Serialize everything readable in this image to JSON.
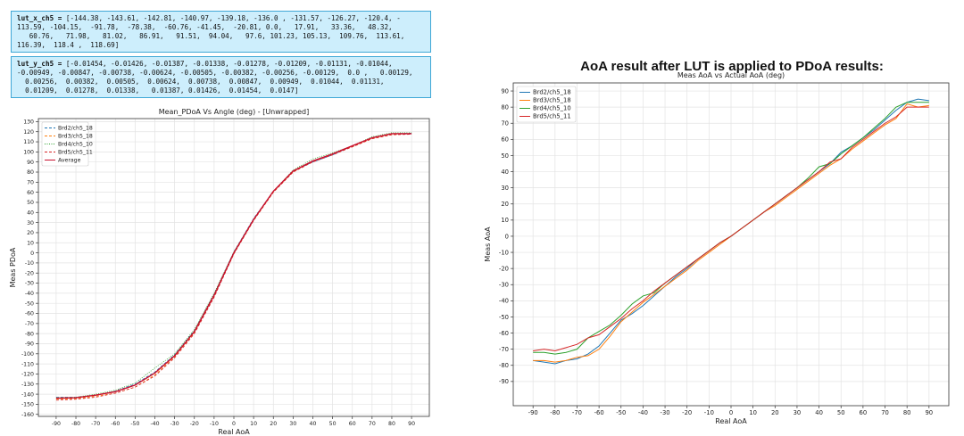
{
  "code_blocks": [
    {
      "label": "lut_x_ch5 =",
      "lines": [
        "[-144.38, -143.61, -142.81, -140.97, -139.18, -136.0 , -131.57, -126.27, -120.4, -",
        "113.59, -104.15,  -91.78,  -78.38,  -60.76, -41.45,  -20.81, 0.0,   17.91,   33.36,   48.32,",
        "   60.76,   71.98,   81.02,   86.91,   91.51,  94.04,   97.6, 101.23, 105.13,  109.76,  113.61,",
        "116.39,  118.4 ,  118.69]"
      ]
    },
    {
      "label": "lut_y_ch5 =",
      "lines": [
        "[-0.01454, -0.01426, -0.01387, -0.01338, -0.01278, -0.01209, -0.01131, -0.01044,",
        "-0.00949, -0.00847, -0.00738, -0.00624, -0.00505, -0.00382, -0.00256, -0.00129,  0.0 ,   0.00129,",
        "  0.00256,  0.00382,  0.00505,  0.00624,  0.00738,  0.00847,  0.00949,  0.01044,  0.01131,",
        "  0.01209,  0.01278,  0.01338,   0.01387, 0.01426,  0.01454,  0.0147]"
      ]
    }
  ],
  "heading": "AoA result after LUT is applied to PDoA results:",
  "chart_data": [
    {
      "type": "line",
      "title": "Mean_PDoA Vs Angle (deg)  - [Unwrapped]",
      "x_label": "Real AoA",
      "y_label": "Meas PDoA",
      "x": [
        -90,
        -80,
        -70,
        -60,
        -50,
        -40,
        -30,
        -20,
        -10,
        0,
        10,
        20,
        30,
        40,
        50,
        60,
        70,
        80,
        90
      ],
      "series": [
        {
          "name": "Brd2/ch5_18",
          "color": "#1f77b4",
          "linestyle": "dashed",
          "values": [
            -143,
            -143,
            -141,
            -137,
            -130,
            -118,
            -101,
            -77,
            -41,
            1,
            34,
            61,
            81,
            90,
            97,
            106,
            114,
            118,
            118.5
          ]
        },
        {
          "name": "Brd3/ch5_18",
          "color": "#ff7f0e",
          "linestyle": "dashed",
          "values": [
            -145,
            -144.5,
            -142,
            -139,
            -133,
            -121,
            -103,
            -79,
            -43,
            -1,
            32,
            60,
            80,
            91,
            98,
            105,
            113,
            117,
            118
          ]
        },
        {
          "name": "Brd4/ch5_10",
          "color": "#2ca02c",
          "linestyle": "dotted",
          "values": [
            -143.5,
            -143,
            -140,
            -136,
            -129,
            -114,
            -100,
            -76,
            -40,
            1,
            33,
            61,
            82,
            93,
            99,
            106,
            115,
            119,
            119
          ]
        },
        {
          "name": "Brd5/ch5_11",
          "color": "#d62728",
          "linestyle": "dashed",
          "values": [
            -146,
            -145,
            -143,
            -139,
            -133,
            -122,
            -104,
            -80,
            -44,
            -1,
            32,
            60,
            80,
            90,
            97,
            105,
            113,
            117,
            117.5
          ]
        },
        {
          "name": "Average",
          "color": "#c8102e",
          "linestyle": "solid",
          "values": [
            -144,
            -143.5,
            -141,
            -137.5,
            -131,
            -119,
            -102,
            -78,
            -42,
            0,
            33,
            61,
            81,
            91,
            98,
            106,
            114,
            118,
            118
          ]
        }
      ],
      "xlim": [
        -99,
        99
      ],
      "ylim": [
        -162,
        133
      ],
      "xticks": [
        -90,
        -80,
        -70,
        -60,
        -50,
        -40,
        -30,
        -20,
        -10,
        0,
        10,
        20,
        30,
        40,
        50,
        60,
        70,
        80,
        90
      ],
      "yticks": [
        -160,
        -150,
        -140,
        -130,
        -120,
        -110,
        -100,
        -90,
        -80,
        -70,
        -60,
        -50,
        -40,
        -30,
        -20,
        -10,
        0,
        10,
        20,
        30,
        40,
        50,
        60,
        70,
        80,
        90,
        100,
        110,
        120,
        130
      ],
      "grid": true,
      "legend": "upper-left"
    },
    {
      "type": "line",
      "title": "Meas AoA vs Actual AoA (deg)",
      "x_label": "Real AoA",
      "y_label": "Meas AoA",
      "x": [
        -90,
        -85,
        -80,
        -75,
        -70,
        -65,
        -60,
        -55,
        -50,
        -45,
        -40,
        -35,
        -30,
        -25,
        -20,
        -15,
        -10,
        -5,
        0,
        5,
        10,
        15,
        20,
        25,
        30,
        35,
        40,
        45,
        50,
        55,
        60,
        65,
        70,
        75,
        80,
        85,
        90
      ],
      "series": [
        {
          "name": "Brd2/ch5_18",
          "color": "#1f77b4",
          "linestyle": "solid",
          "values": [
            -77,
            -78,
            -79,
            -77,
            -76,
            -73,
            -68,
            -60,
            -52,
            -48,
            -43,
            -37,
            -31,
            -25,
            -20,
            -14,
            -9,
            -4,
            0,
            5,
            10,
            15,
            20,
            25,
            30,
            35,
            40,
            45,
            52,
            56,
            61,
            66,
            72,
            78,
            83,
            85,
            84
          ]
        },
        {
          "name": "Brd3/ch5_18",
          "color": "#ff7f0e",
          "linestyle": "solid",
          "values": [
            -77,
            -77,
            -78,
            -77,
            -75,
            -74,
            -70,
            -62,
            -53,
            -47,
            -41,
            -36,
            -31,
            -26,
            -21,
            -15,
            -10,
            -5,
            0,
            5,
            10,
            15,
            19,
            24,
            29,
            34,
            39,
            44,
            48,
            54,
            59,
            64,
            69,
            73,
            82,
            80,
            81
          ]
        },
        {
          "name": "Brd4/ch5_10",
          "color": "#2ca02c",
          "linestyle": "solid",
          "values": [
            -72,
            -72,
            -73,
            -72,
            -70,
            -63,
            -59,
            -55,
            -49,
            -42,
            -37,
            -35,
            -29,
            -24,
            -19,
            -14,
            -9,
            -4,
            0,
            5,
            10,
            15,
            20,
            25,
            30,
            36,
            43,
            45,
            51,
            56,
            61,
            67,
            73,
            80,
            83,
            83,
            83
          ]
        },
        {
          "name": "Brd5/ch5_11",
          "color": "#d62728",
          "linestyle": "solid",
          "values": [
            -71,
            -70,
            -71,
            -69,
            -67,
            -63,
            -61,
            -56,
            -51,
            -45,
            -40,
            -34,
            -29,
            -24,
            -19,
            -14,
            -9,
            -4,
            0,
            5,
            10,
            15,
            20,
            25,
            30,
            35,
            40,
            46,
            48,
            55,
            60,
            65,
            70,
            74,
            80,
            80,
            80
          ]
        }
      ],
      "xlim": [
        -99,
        99
      ],
      "ylim": [
        -105,
        95
      ],
      "xticks": [
        -90,
        -80,
        -70,
        -60,
        -50,
        -40,
        -30,
        -20,
        -10,
        0,
        10,
        20,
        30,
        40,
        50,
        60,
        70,
        80,
        90
      ],
      "yticks": [
        -90,
        -80,
        -70,
        -60,
        -50,
        -40,
        -30,
        -20,
        -10,
        0,
        10,
        20,
        30,
        40,
        50,
        60,
        70,
        80,
        90
      ],
      "grid": true,
      "legend": "upper-left"
    }
  ]
}
